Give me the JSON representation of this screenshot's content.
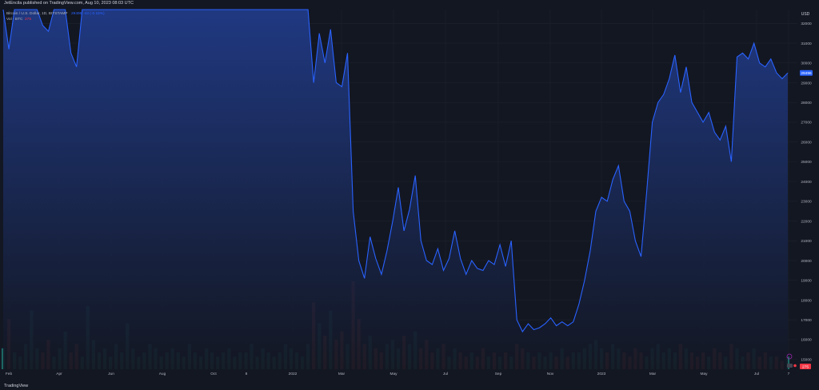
{
  "header": {
    "published": "JetEncila published on TradingView.com, Aug 10, 2023 08:03 UTC"
  },
  "legend": {
    "symbol": "Bitcoin / U.S. Dollar, 1D, BITSTAMP",
    "price": "29496",
    "change": "-43 (-0.15%)",
    "volume_label": "Vol · BTC",
    "volume_value": "275"
  },
  "footer": {
    "logo": "TradingView"
  },
  "chart_data": {
    "type": "area",
    "currency": "USD",
    "yticks": [
      15000,
      16000,
      17000,
      18000,
      19000,
      20000,
      21000,
      22000,
      23000,
      24000,
      25000,
      26000,
      27000,
      28000,
      29000,
      30000,
      31000,
      32000
    ],
    "ylim": [
      14500,
      32700
    ],
    "last_price_label": "29496",
    "last_volume_label": "275",
    "xticks": [
      "Feb",
      "Apr",
      "Jun",
      "Aug",
      "Oct",
      "8",
      "2022",
      "Mar",
      "May",
      "Jul",
      "Sep",
      "Nov",
      "2023",
      "Mar",
      "May",
      "Jul",
      "7"
    ],
    "series": [
      {
        "values": [
          33000,
          30700,
          33000,
          33000,
          33000,
          33000,
          33000,
          31900,
          31600,
          33000,
          33000,
          33000,
          30500,
          29800,
          33000,
          33000,
          33000,
          33000,
          33000,
          33000,
          33000,
          33000,
          33000,
          33000,
          33000,
          33000,
          33000,
          33000,
          33000,
          33000,
          33000,
          33000,
          33000,
          33000,
          33000,
          33000,
          33000,
          33000,
          33000,
          33000,
          33000,
          33000,
          33000,
          33000,
          33000,
          33000,
          33000,
          33000,
          33000,
          33000,
          33000,
          33000,
          33000,
          33000,
          33000,
          29000,
          31500,
          30000,
          31700,
          29000,
          28800,
          30500,
          22500,
          20000,
          19100,
          21200,
          20100,
          19300,
          20500,
          22000,
          23700,
          21500,
          22600,
          24300,
          21000,
          20000,
          19800,
          20600,
          19500,
          20100,
          21500,
          20100,
          19300,
          20000,
          19600,
          19500,
          20000,
          19800,
          20800,
          19700,
          21000,
          17000,
          16400,
          16800,
          16500,
          16600,
          16800,
          17100,
          16700,
          16900,
          16700,
          16900,
          17800,
          19000,
          20500,
          22500,
          23200,
          23000,
          24100,
          24800,
          23000,
          22500,
          21000,
          20200,
          23500,
          27000,
          28000,
          28400,
          29200,
          30400,
          28500,
          29800,
          28000,
          27500,
          27000,
          27500,
          26500,
          26100,
          26800,
          25000,
          30300,
          30500,
          30200,
          31000,
          30000,
          29800,
          30200,
          29500,
          29200,
          29496
        ],
        "volume": [
          5,
          12,
          4,
          3,
          6,
          14,
          5,
          4,
          7,
          3,
          5,
          9,
          4,
          6,
          3,
          15,
          7,
          4,
          5,
          3,
          6,
          4,
          11,
          5,
          3,
          4,
          6,
          5,
          3,
          4,
          5,
          4,
          3,
          6,
          4,
          3,
          5,
          4,
          3,
          4,
          5,
          3,
          4,
          4,
          6,
          3,
          5,
          4,
          3,
          4,
          6,
          5,
          4,
          3,
          6,
          16,
          11,
          8,
          14,
          7,
          9,
          6,
          21,
          12,
          6,
          8,
          5,
          4,
          6,
          7,
          5,
          8,
          6,
          9,
          5,
          7,
          4,
          5,
          6,
          3,
          5,
          4,
          3,
          4,
          3,
          5,
          3,
          4,
          3,
          4,
          3,
          6,
          5,
          4,
          3,
          4,
          3,
          4,
          3,
          5,
          3,
          4,
          4,
          5,
          6,
          7,
          5,
          4,
          6,
          5,
          4,
          3,
          5,
          4,
          3,
          5,
          6,
          4,
          5,
          4,
          6,
          5,
          4,
          3,
          4,
          3,
          5,
          4,
          3,
          6,
          5,
          3,
          4,
          5,
          3,
          4,
          3,
          3,
          2,
          3
        ]
      }
    ],
    "grid": true
  },
  "colors": {
    "background": "#131722",
    "line": "#2962ff",
    "area_top": "#1f3a8a",
    "grid": "#1e222d",
    "text": "#b2b5be",
    "price_tag": "#2962ff",
    "volume_tag": "#f23645",
    "volume_up": "#26a69a",
    "volume_down": "#ef5350"
  }
}
